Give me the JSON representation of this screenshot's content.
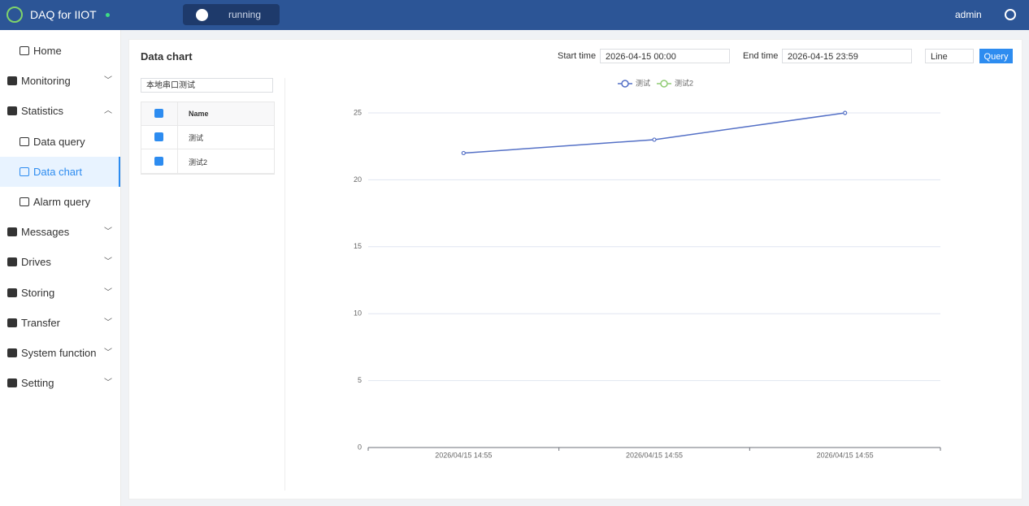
{
  "header": {
    "title": "DAQ for IIOT",
    "status": "running",
    "user": "admin"
  },
  "menu": [
    {
      "label": "Home"
    },
    {
      "label": "Monitoring"
    },
    {
      "label": "Statistics",
      "children": [
        "Data query",
        "Data chart",
        "Alarm query"
      ]
    },
    {
      "label": "Messages"
    },
    {
      "label": "Drives"
    },
    {
      "label": "Storing"
    },
    {
      "label": "Transfer"
    },
    {
      "label": "System function"
    },
    {
      "label": "Setting"
    }
  ],
  "panel": {
    "title": "Data chart",
    "start_label": "Start time",
    "start_value": "2026-04-15 00:00",
    "end_label": "End time",
    "end_value": "2026-04-15 23:59",
    "chart_type": "Line",
    "query": "Query",
    "device": "本地串口测试",
    "table_header": "Name",
    "rows": [
      "测试",
      "测试2"
    ]
  },
  "chart_data": {
    "type": "line",
    "categories": [
      "2026/04/15 14:55",
      "2026/04/15 14:55",
      "2026/04/15 14:55"
    ],
    "series": [
      {
        "name": "测试",
        "color": "#5470c6",
        "values": [
          22,
          23,
          25
        ]
      },
      {
        "name": "测试2",
        "color": "#91cc75",
        "values": [
          null,
          null,
          null
        ]
      }
    ],
    "ylim": [
      0,
      25
    ],
    "yticks": [
      0,
      5,
      10,
      15,
      20,
      25
    ],
    "grid": true,
    "legend": "top"
  }
}
